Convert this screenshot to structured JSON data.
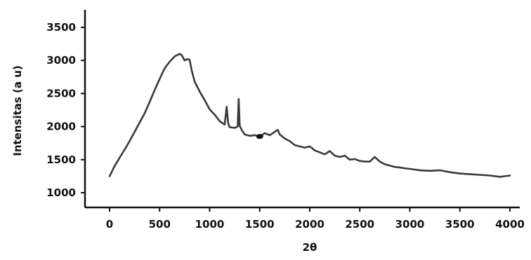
{
  "chart_data": {
    "type": "line",
    "title": "",
    "xlabel": "2θ",
    "ylabel": "Intensitas (a u)",
    "xlim": [
      0,
      4000
    ],
    "ylim": [
      1000,
      3500
    ],
    "x_ticks": [
      "0",
      "500",
      "1000",
      "1500",
      "2000",
      "2500",
      "3000",
      "3500",
      "4000"
    ],
    "y_ticks": [
      "1000",
      "1500",
      "2000",
      "2500",
      "3000",
      "3500"
    ],
    "grid": false,
    "legend": "none",
    "line_color": "#3a3a3a",
    "series": [
      {
        "x": [
          0,
          50,
          100,
          150,
          200,
          250,
          300,
          350,
          400,
          450,
          500,
          550,
          600,
          650,
          700,
          720,
          750,
          780,
          800,
          820,
          850,
          900,
          950,
          1000,
          1050,
          1100,
          1150,
          1170,
          1185,
          1200,
          1250,
          1280,
          1290,
          1300,
          1320,
          1350,
          1400,
          1450,
          1500,
          1550,
          1600,
          1650,
          1680,
          1700,
          1750,
          1800,
          1850,
          1900,
          1950,
          2000,
          2050,
          2100,
          2150,
          2200,
          2250,
          2300,
          2350,
          2400,
          2450,
          2500,
          2550,
          2600,
          2650,
          2700,
          2750,
          2800,
          2850,
          2900,
          2950,
          3000,
          3100,
          3200,
          3300,
          3400,
          3500,
          3600,
          3700,
          3800,
          3900,
          4000
        ],
        "y": [
          1250,
          1400,
          1530,
          1650,
          1780,
          1920,
          2060,
          2200,
          2370,
          2550,
          2720,
          2880,
          2980,
          3060,
          3100,
          3080,
          3000,
          3020,
          3010,
          2850,
          2680,
          2530,
          2400,
          2260,
          2180,
          2080,
          2030,
          2300,
          2050,
          1990,
          1980,
          2000,
          2420,
          2010,
          1950,
          1880,
          1860,
          1870,
          1850,
          1900,
          1870,
          1920,
          1950,
          1880,
          1820,
          1780,
          1720,
          1700,
          1680,
          1700,
          1640,
          1610,
          1580,
          1630,
          1560,
          1540,
          1560,
          1500,
          1510,
          1480,
          1470,
          1470,
          1540,
          1470,
          1430,
          1410,
          1390,
          1380,
          1370,
          1360,
          1340,
          1330,
          1340,
          1310,
          1290,
          1280,
          1270,
          1260,
          1240,
          1260
        ]
      }
    ],
    "annotations": [
      {
        "x": 1500,
        "y": 1850,
        "marker": "dot"
      }
    ]
  }
}
